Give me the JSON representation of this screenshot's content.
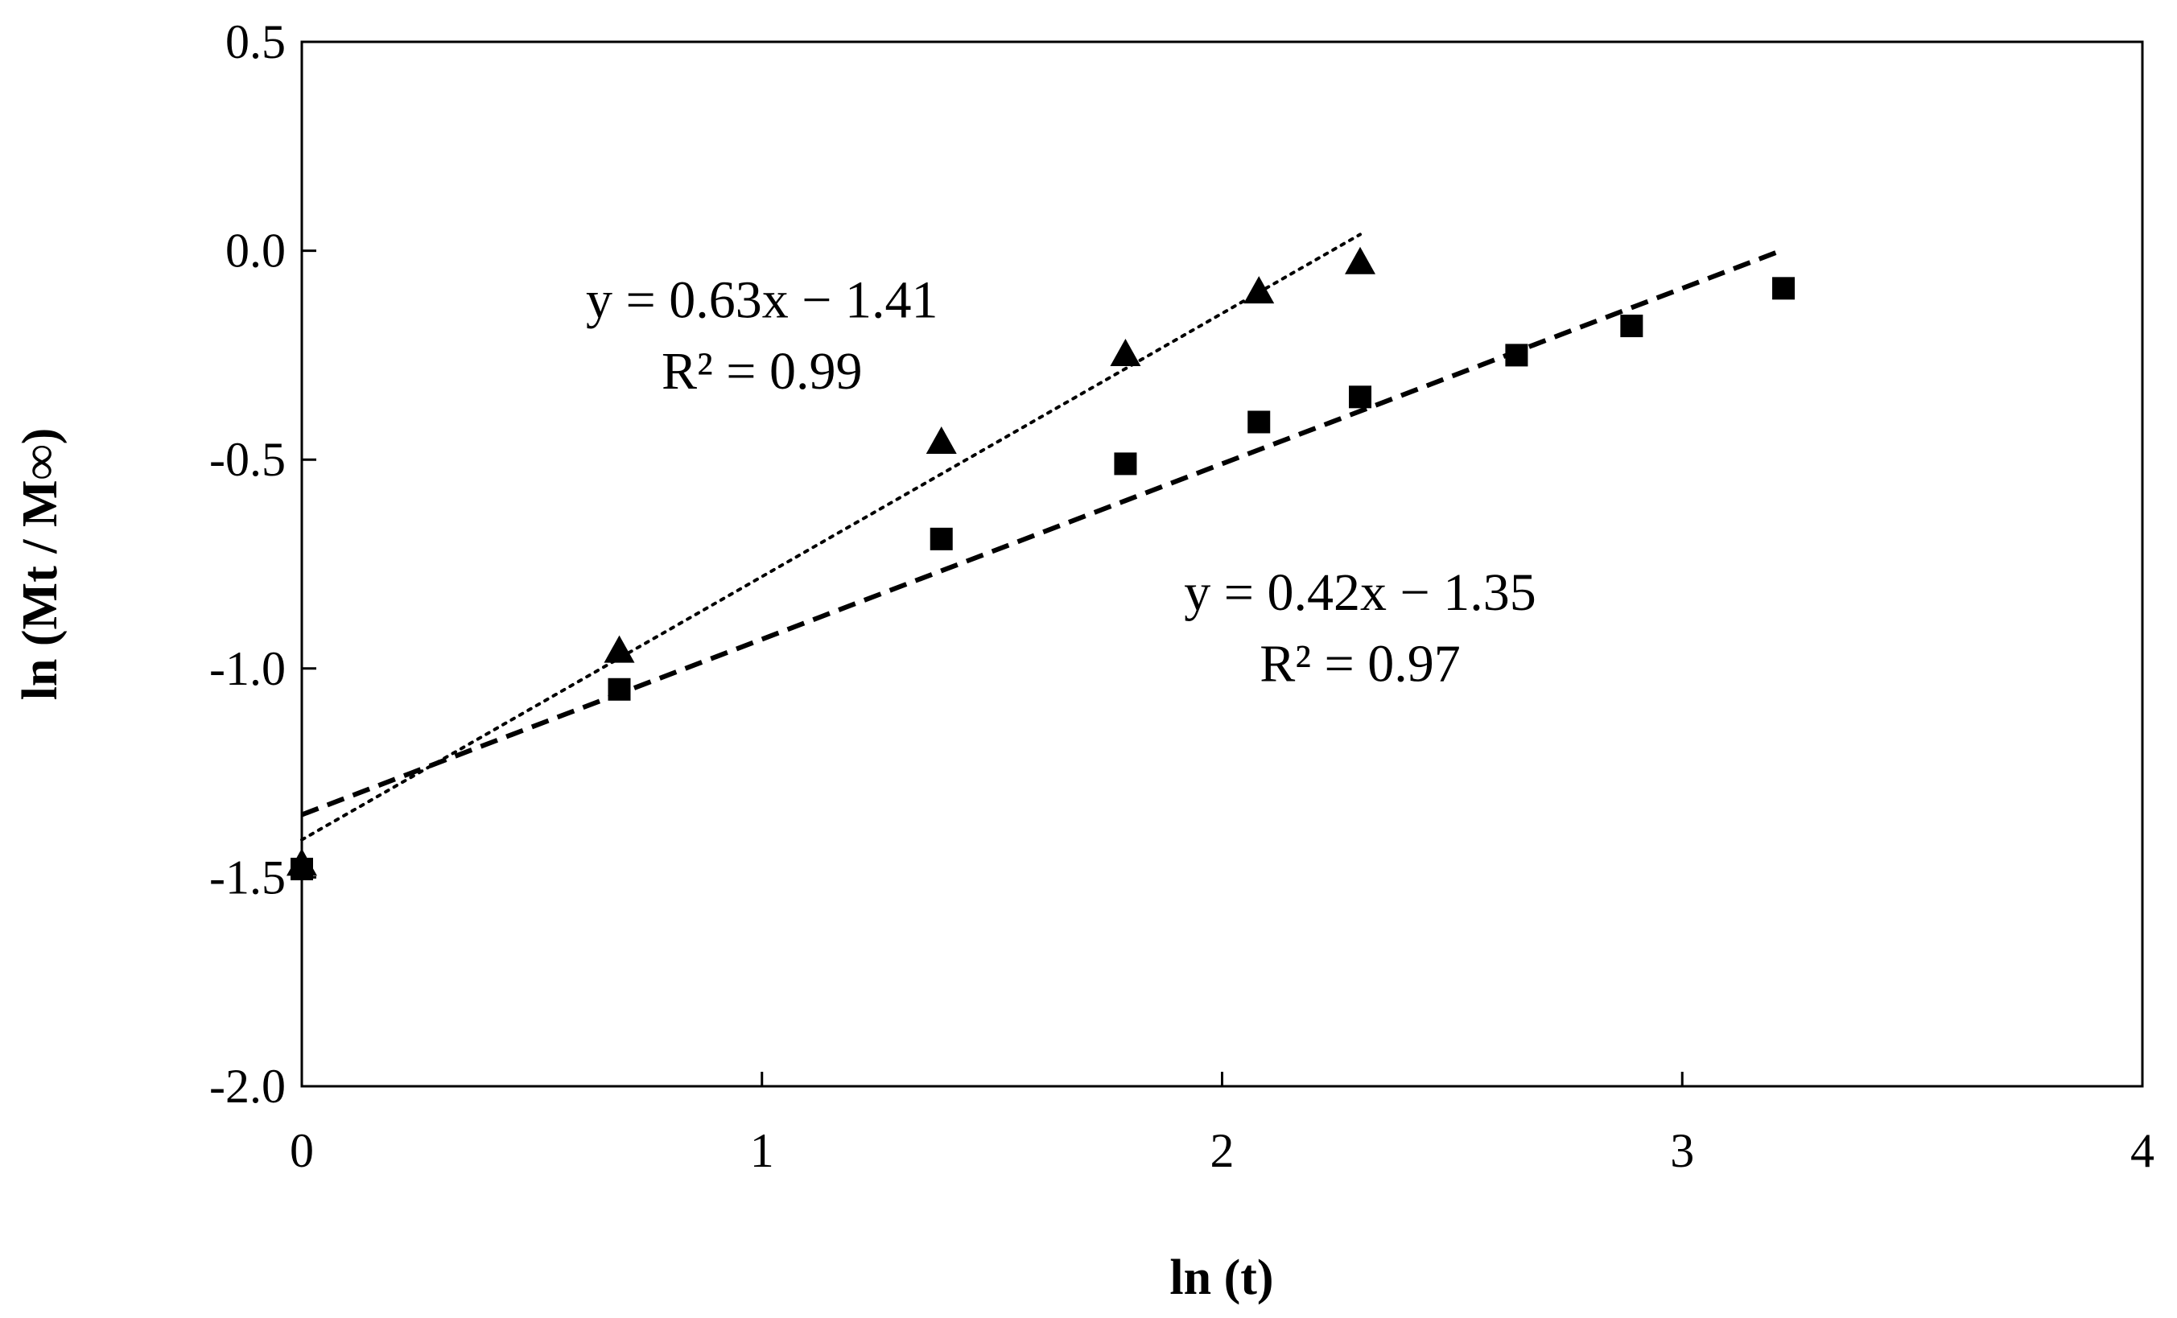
{
  "chart_data": {
    "type": "scatter",
    "title": "",
    "xlabel": "ln (t)",
    "ylabel": "ln (Mt / M∞)",
    "xlim": [
      0,
      4
    ],
    "ylim": [
      -2.0,
      0.5
    ],
    "xticks": [
      0,
      1,
      2,
      3,
      4
    ],
    "xtick_labels": [
      "0",
      "1",
      "2",
      "3",
      "4"
    ],
    "yticks": [
      0.5,
      0.0,
      -0.5,
      -1.0,
      -1.5,
      -2.0
    ],
    "ytick_labels": [
      "0.5",
      "0.0",
      "-0.5",
      "-1.0",
      "-1.5",
      "-2.0"
    ],
    "grid": false,
    "legend": "none",
    "series": [
      {
        "marker": "triangle",
        "color": "#000000",
        "x": [
          0,
          0.69,
          1.39,
          1.79,
          2.08,
          2.3
        ],
        "y": [
          -1.47,
          -0.96,
          -0.46,
          -0.25,
          -0.1,
          -0.03
        ],
        "fit": {
          "slope": 0.63,
          "intercept": -1.41,
          "x_range": [
            0,
            2.3
          ],
          "style": "dotted"
        }
      },
      {
        "marker": "square",
        "color": "#000000",
        "x": [
          0,
          0.69,
          1.39,
          1.79,
          2.08,
          2.3,
          2.64,
          2.89,
          3.22
        ],
        "y": [
          -1.48,
          -1.05,
          -0.69,
          -0.51,
          -0.41,
          -0.35,
          -0.25,
          -0.18,
          -0.09
        ],
        "fit": {
          "slope": 0.42,
          "intercept": -1.35,
          "x_range": [
            0,
            3.22
          ],
          "style": "dashed"
        }
      }
    ],
    "annotations": [
      {
        "id": "eq1",
        "text": "y = 0.63x − 1.41",
        "x": 1.0,
        "y": -0.16
      },
      {
        "id": "r2_1",
        "text": "R² = 0.99",
        "x": 1.0,
        "y": -0.33
      },
      {
        "id": "eq2",
        "text": "y = 0.42x − 1.35",
        "x": 2.3,
        "y": -0.86
      },
      {
        "id": "r2_2",
        "text": "R² = 0.97",
        "x": 2.3,
        "y": -1.03
      }
    ]
  }
}
